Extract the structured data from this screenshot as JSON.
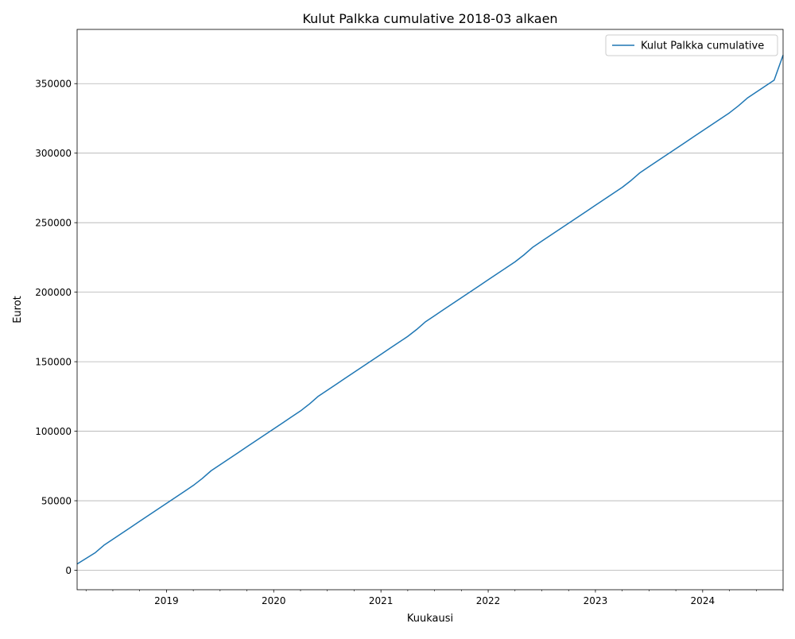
{
  "chart_data": {
    "type": "line",
    "title": "Kulut Palkka cumulative 2018-03 alkaen",
    "xlabel": "Kuukausi",
    "ylabel": "Eurot",
    "xlim": [
      "2018-03",
      "2024-10"
    ],
    "ylim": [
      -14000,
      389000
    ],
    "grid": "y-major",
    "legend_position": "top-right",
    "x_major_ticks": [
      {
        "date": "2019-01",
        "label": "2019"
      },
      {
        "date": "2020-01",
        "label": "2020"
      },
      {
        "date": "2021-01",
        "label": "2021"
      },
      {
        "date": "2022-01",
        "label": "2022"
      },
      {
        "date": "2023-01",
        "label": "2023"
      },
      {
        "date": "2024-01",
        "label": "2024"
      }
    ],
    "y_ticks": [
      {
        "value": 0,
        "label": "0"
      },
      {
        "value": 50000,
        "label": "50000"
      },
      {
        "value": 100000,
        "label": "100000"
      },
      {
        "value": 150000,
        "label": "150000"
      },
      {
        "value": 200000,
        "label": "200000"
      },
      {
        "value": 250000,
        "label": "250000"
      },
      {
        "value": 300000,
        "label": "300000"
      },
      {
        "value": 350000,
        "label": "350000"
      }
    ],
    "colors": {
      "series": "#1f77b4",
      "grid": "#b0b0b0"
    },
    "series": [
      {
        "name": "Kulut Palkka cumulative",
        "x": [
          "2018-03",
          "2018-04",
          "2018-05",
          "2018-06",
          "2018-07",
          "2018-08",
          "2018-09",
          "2018-10",
          "2018-11",
          "2018-12",
          "2019-01",
          "2019-02",
          "2019-03",
          "2019-04",
          "2019-05",
          "2019-06",
          "2019-07",
          "2019-08",
          "2019-09",
          "2019-10",
          "2019-11",
          "2019-12",
          "2020-01",
          "2020-02",
          "2020-03",
          "2020-04",
          "2020-05",
          "2020-06",
          "2020-07",
          "2020-08",
          "2020-09",
          "2020-10",
          "2020-11",
          "2020-12",
          "2021-01",
          "2021-02",
          "2021-03",
          "2021-04",
          "2021-05",
          "2021-06",
          "2021-07",
          "2021-08",
          "2021-09",
          "2021-10",
          "2021-11",
          "2021-12",
          "2022-01",
          "2022-02",
          "2022-03",
          "2022-04",
          "2022-05",
          "2022-06",
          "2022-07",
          "2022-08",
          "2022-09",
          "2022-10",
          "2022-11",
          "2022-12",
          "2023-01",
          "2023-02",
          "2023-03",
          "2023-04",
          "2023-05",
          "2023-06",
          "2023-07",
          "2023-08",
          "2023-09",
          "2023-10",
          "2023-11",
          "2023-12",
          "2024-01",
          "2024-02",
          "2024-03",
          "2024-04",
          "2024-05",
          "2024-06",
          "2024-07",
          "2024-08",
          "2024-09",
          "2024-10"
        ],
        "values": [
          4500,
          8500,
          12500,
          18000,
          22300,
          26600,
          30900,
          35200,
          39500,
          43800,
          48100,
          52400,
          56700,
          61000,
          66000,
          71600,
          75900,
          80200,
          84500,
          88800,
          93100,
          97400,
          101700,
          106000,
          110300,
          114600,
          119600,
          125200,
          129500,
          133800,
          138100,
          142400,
          146700,
          151000,
          155300,
          159600,
          163900,
          168200,
          173200,
          178800,
          183100,
          187400,
          191700,
          196000,
          200300,
          204600,
          208900,
          213200,
          217500,
          221800,
          226800,
          232400,
          236700,
          241000,
          245300,
          249600,
          253900,
          258200,
          262500,
          266800,
          271100,
          275400,
          280400,
          286000,
          290300,
          294600,
          298900,
          303200,
          307500,
          311800,
          316100,
          320400,
          324700,
          329000,
          334000,
          339600,
          343900,
          348200,
          352500,
          370500
        ]
      }
    ]
  }
}
